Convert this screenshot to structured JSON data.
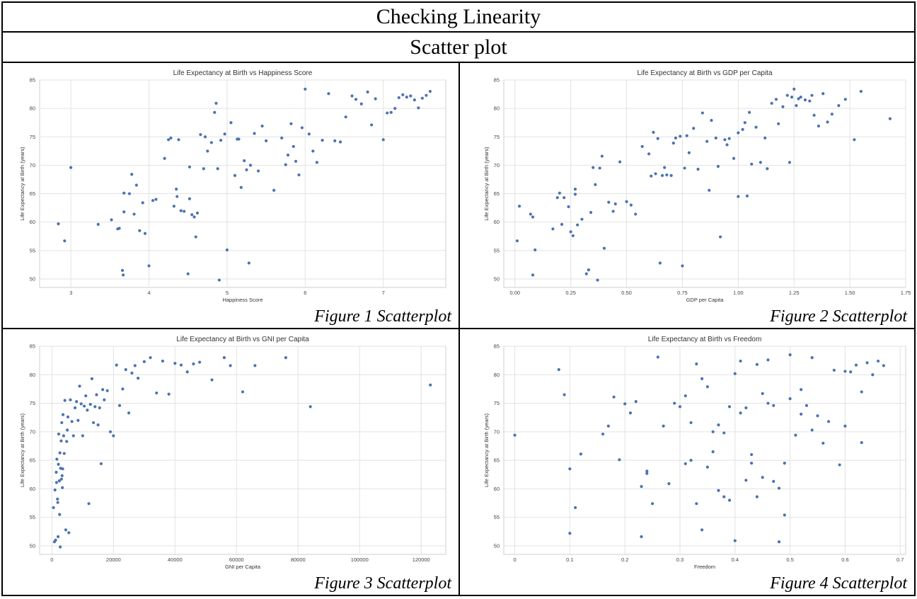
{
  "header": {
    "title": "Checking Linearity",
    "subtitle": "Scatter plot"
  },
  "colors": {
    "point": "#4c72b0",
    "grid": "#e2e2e2",
    "frame": "#cfcfcf"
  },
  "chart_data": [
    {
      "type": "scatter",
      "title": "Life Expectancy at Birth vs Happiness Score",
      "xlabel": "Happiness Score",
      "ylabel": "Life Expectancy at Birth (years)",
      "caption": "Figure 1 Scatterplot",
      "xlim": [
        2.6,
        7.8
      ],
      "ylim": [
        48.5,
        85
      ],
      "xticks": [
        3,
        4,
        5,
        6,
        7
      ],
      "yticks": [
        50,
        55,
        60,
        65,
        70,
        75,
        80,
        85
      ],
      "grid": true,
      "x": [
        2.84,
        2.92,
        3.0,
        3.35,
        3.52,
        3.6,
        3.62,
        3.66,
        3.67,
        3.68,
        3.68,
        3.75,
        3.78,
        3.81,
        3.84,
        3.88,
        3.92,
        3.95,
        4.0,
        4.05,
        4.09,
        4.2,
        4.25,
        4.28,
        4.32,
        4.35,
        4.36,
        4.38,
        4.41,
        4.45,
        4.5,
        4.52,
        4.52,
        4.55,
        4.58,
        4.6,
        4.62,
        4.66,
        4.7,
        4.72,
        4.75,
        4.8,
        4.84,
        4.86,
        4.88,
        4.9,
        4.92,
        4.97,
        5.0,
        5.05,
        5.1,
        5.13,
        5.15,
        5.18,
        5.22,
        5.25,
        5.28,
        5.3,
        5.35,
        5.4,
        5.45,
        5.5,
        5.6,
        5.7,
        5.75,
        5.78,
        5.82,
        5.85,
        5.88,
        5.92,
        5.96,
        6.0,
        6.05,
        6.1,
        6.15,
        6.22,
        6.3,
        6.38,
        6.45,
        6.52,
        6.6,
        6.65,
        6.72,
        6.8,
        6.85,
        6.9,
        7.0,
        7.05,
        7.1,
        7.15,
        7.2,
        7.25,
        7.3,
        7.35,
        7.4,
        7.45,
        7.5,
        7.55,
        7.6
      ],
      "y": [
        59.7,
        56.7,
        69.6,
        59.6,
        60.4,
        58.8,
        58.9,
        51.5,
        50.7,
        65.1,
        61.8,
        65.0,
        68.4,
        61.4,
        66.5,
        58.5,
        63.4,
        58.0,
        52.3,
        63.8,
        64.0,
        71.2,
        74.5,
        74.8,
        62.8,
        65.8,
        64.5,
        74.5,
        62.0,
        61.9,
        50.9,
        69.7,
        64.1,
        61.3,
        60.9,
        57.4,
        61.6,
        75.4,
        69.4,
        75.0,
        72.5,
        74.0,
        79.3,
        80.9,
        69.4,
        49.8,
        74.4,
        75.5,
        55.1,
        77.5,
        68.2,
        74.6,
        74.6,
        66.1,
        70.8,
        69.2,
        52.8,
        70.0,
        75.6,
        69.0,
        76.9,
        74.3,
        65.6,
        74.8,
        70.1,
        71.8,
        77.3,
        73.3,
        70.7,
        68.3,
        76.6,
        83.4,
        75.5,
        72.5,
        70.5,
        74.4,
        82.6,
        74.3,
        74.1,
        78.5,
        82.2,
        81.6,
        80.8,
        82.9,
        77.1,
        81.7,
        74.5,
        79.2,
        79.3,
        80.0,
        81.9,
        82.4,
        82.0,
        82.2,
        81.5,
        80.1,
        81.8,
        82.3,
        83.0
      ]
    },
    {
      "type": "scatter",
      "title": "Life Expectancy at Birth vs GDP per Capita",
      "xlabel": "GDP per Capita",
      "ylabel": "Life Expectancy at Birth (years)",
      "caption": "Figure 2 Scatterplot",
      "xlim": [
        -0.05,
        1.75
      ],
      "ylim": [
        48.5,
        85
      ],
      "xticks": [
        0.0,
        0.25,
        0.5,
        0.75,
        1.0,
        1.25,
        1.5,
        1.75
      ],
      "xticklabels": [
        "0.00",
        "0.25",
        "0.50",
        "0.75",
        "1.00",
        "1.25",
        "1.50",
        "1.75"
      ],
      "yticks": [
        50,
        55,
        60,
        65,
        70,
        75,
        80,
        85
      ],
      "grid": true,
      "x": [
        0.01,
        0.02,
        0.07,
        0.08,
        0.08,
        0.09,
        0.17,
        0.19,
        0.2,
        0.21,
        0.22,
        0.24,
        0.25,
        0.26,
        0.27,
        0.27,
        0.28,
        0.3,
        0.32,
        0.33,
        0.34,
        0.35,
        0.36,
        0.37,
        0.38,
        0.39,
        0.4,
        0.42,
        0.44,
        0.45,
        0.47,
        0.5,
        0.52,
        0.54,
        0.57,
        0.6,
        0.61,
        0.62,
        0.63,
        0.64,
        0.65,
        0.66,
        0.67,
        0.68,
        0.7,
        0.71,
        0.72,
        0.74,
        0.75,
        0.76,
        0.77,
        0.78,
        0.8,
        0.82,
        0.84,
        0.86,
        0.87,
        0.88,
        0.9,
        0.91,
        0.92,
        0.94,
        0.95,
        0.96,
        0.98,
        1.0,
        1.0,
        1.02,
        1.03,
        1.04,
        1.05,
        1.06,
        1.08,
        1.1,
        1.12,
        1.13,
        1.15,
        1.17,
        1.18,
        1.2,
        1.22,
        1.23,
        1.24,
        1.25,
        1.26,
        1.27,
        1.28,
        1.3,
        1.32,
        1.33,
        1.34,
        1.36,
        1.38,
        1.4,
        1.42,
        1.45,
        1.48,
        1.52,
        1.55,
        1.68
      ],
      "y": [
        56.7,
        62.8,
        61.4,
        60.9,
        50.7,
        55.1,
        58.8,
        64.3,
        65.1,
        59.6,
        64.3,
        62.7,
        58.3,
        57.6,
        65.8,
        64.9,
        59.5,
        60.5,
        50.9,
        51.6,
        61.7,
        69.6,
        66.6,
        49.8,
        69.5,
        71.6,
        55.4,
        63.5,
        61.9,
        63.2,
        70.6,
        63.6,
        63.0,
        61.4,
        73.3,
        72.0,
        68.1,
        75.8,
        68.5,
        74.7,
        52.8,
        68.2,
        69.6,
        68.3,
        68.2,
        73.9,
        74.8,
        75.1,
        52.3,
        69.5,
        75.2,
        72.2,
        76.5,
        69.3,
        79.2,
        74.2,
        65.6,
        77.9,
        74.8,
        69.8,
        57.4,
        74.5,
        73.6,
        74.7,
        71.2,
        75.7,
        64.5,
        76.3,
        77.5,
        64.6,
        79.3,
        70.2,
        76.7,
        70.5,
        74.8,
        69.4,
        80.9,
        81.6,
        77.3,
        80.3,
        82.3,
        70.5,
        82.0,
        83.4,
        80.5,
        81.7,
        82.0,
        81.5,
        81.3,
        82.3,
        78.8,
        76.9,
        82.6,
        77.6,
        79.0,
        80.5,
        81.6,
        74.5,
        83.0,
        78.2
      ]
    },
    {
      "type": "scatter",
      "title": "Life Expectancy at Birth vs GNI per Capita",
      "xlabel": "GNI per Capita",
      "ylabel": "Life Expectancy at Birth (years)",
      "caption": "Figure 3 Scatterplot",
      "xlim": [
        -4000,
        128000
      ],
      "ylim": [
        48.5,
        85
      ],
      "xticks": [
        0,
        20000,
        40000,
        60000,
        80000,
        100000,
        120000
      ],
      "yticks": [
        50,
        55,
        60,
        65,
        70,
        75,
        80,
        85
      ],
      "grid": true,
      "x": [
        500,
        800,
        1000,
        1200,
        1400,
        1500,
        1600,
        1800,
        1900,
        2000,
        2100,
        2200,
        2400,
        2500,
        2600,
        2700,
        2800,
        3000,
        3100,
        3200,
        3300,
        3400,
        3500,
        3600,
        3800,
        4000,
        4200,
        4500,
        4800,
        5000,
        5200,
        5500,
        6000,
        6500,
        7000,
        7500,
        8000,
        8500,
        9000,
        9500,
        10000,
        10500,
        11000,
        11500,
        12000,
        12500,
        13000,
        13500,
        14000,
        14500,
        15000,
        15500,
        16000,
        16500,
        17000,
        18000,
        19000,
        20000,
        21000,
        22000,
        23000,
        24000,
        25000,
        26000,
        27000,
        28000,
        30000,
        32000,
        34000,
        36000,
        38000,
        40000,
        42000,
        44000,
        46000,
        48000,
        52000,
        56000,
        58000,
        62000,
        66000,
        76000,
        84000,
        123000
      ],
      "y": [
        56.7,
        50.7,
        59.8,
        51.0,
        62.9,
        61.1,
        65.2,
        58.2,
        57.6,
        51.6,
        64.3,
        69.6,
        61.4,
        55.5,
        66.3,
        49.8,
        63.6,
        68.4,
        61.7,
        71.6,
        62.3,
        60.2,
        63.5,
        73.0,
        69.3,
        66.2,
        75.5,
        52.8,
        68.3,
        70.3,
        72.6,
        52.3,
        75.6,
        71.8,
        69.3,
        74.2,
        75.3,
        72.0,
        78.0,
        74.9,
        69.3,
        74.5,
        76.3,
        73.8,
        57.4,
        74.8,
        79.3,
        71.6,
        74.4,
        76.5,
        71.2,
        74.2,
        64.4,
        77.4,
        75.6,
        77.2,
        70.0,
        69.3,
        81.7,
        74.6,
        77.5,
        80.9,
        73.3,
        80.3,
        81.6,
        79.4,
        82.3,
        83.0,
        76.8,
        82.4,
        76.6,
        82.0,
        81.7,
        80.5,
        81.9,
        82.2,
        79.1,
        83.0,
        81.6,
        77.0,
        81.6,
        83.0,
        74.4,
        78.2
      ]
    },
    {
      "type": "scatter",
      "title": "Life Expectancy at Birth vs Freedom",
      "xlabel": "Freedom",
      "ylabel": "Life Expectancy at Birth (years)",
      "caption": "Figure 4 Scatterplot",
      "xlim": [
        -0.02,
        0.71
      ],
      "ylim": [
        48.5,
        85
      ],
      "xticks": [
        0.0,
        0.1,
        0.2,
        0.3,
        0.4,
        0.5,
        0.6,
        0.7
      ],
      "yticks": [
        50,
        55,
        60,
        65,
        70,
        75,
        80,
        85
      ],
      "grid": true,
      "x": [
        0.0,
        0.08,
        0.09,
        0.1,
        0.1,
        0.11,
        0.12,
        0.16,
        0.17,
        0.18,
        0.19,
        0.2,
        0.21,
        0.22,
        0.23,
        0.23,
        0.24,
        0.24,
        0.25,
        0.26,
        0.27,
        0.28,
        0.29,
        0.3,
        0.31,
        0.31,
        0.32,
        0.32,
        0.33,
        0.33,
        0.34,
        0.34,
        0.35,
        0.35,
        0.36,
        0.36,
        0.37,
        0.37,
        0.38,
        0.38,
        0.39,
        0.39,
        0.4,
        0.4,
        0.41,
        0.41,
        0.42,
        0.42,
        0.43,
        0.43,
        0.44,
        0.44,
        0.45,
        0.45,
        0.46,
        0.46,
        0.47,
        0.47,
        0.48,
        0.48,
        0.49,
        0.49,
        0.5,
        0.5,
        0.51,
        0.52,
        0.52,
        0.53,
        0.54,
        0.54,
        0.55,
        0.56,
        0.57,
        0.58,
        0.59,
        0.6,
        0.6,
        0.61,
        0.62,
        0.63,
        0.63,
        0.64,
        0.65,
        0.66,
        0.67
      ],
      "y": [
        69.4,
        80.9,
        76.5,
        63.5,
        52.2,
        56.7,
        66.1,
        69.6,
        71.0,
        76.1,
        65.1,
        74.9,
        73.3,
        75.3,
        60.4,
        51.6,
        63.1,
        62.7,
        57.4,
        83.1,
        71.0,
        60.9,
        75.0,
        74.4,
        64.4,
        76.3,
        65.0,
        71.6,
        81.9,
        57.4,
        79.3,
        52.8,
        63.8,
        77.9,
        66.5,
        70.0,
        71.2,
        59.7,
        58.6,
        69.8,
        58.0,
        74.4,
        80.2,
        50.9,
        73.3,
        82.4,
        61.5,
        74.2,
        64.5,
        66.0,
        58.6,
        81.8,
        76.7,
        62.0,
        82.6,
        75.0,
        74.6,
        61.3,
        60.1,
        50.7,
        55.4,
        64.5,
        83.5,
        75.8,
        69.4,
        77.4,
        73.1,
        74.6,
        70.3,
        83.0,
        72.8,
        68.0,
        71.8,
        80.8,
        64.2,
        71.0,
        80.6,
        80.5,
        81.7,
        68.1,
        77.0,
        82.1,
        80.0,
        82.4,
        81.6
      ]
    }
  ]
}
